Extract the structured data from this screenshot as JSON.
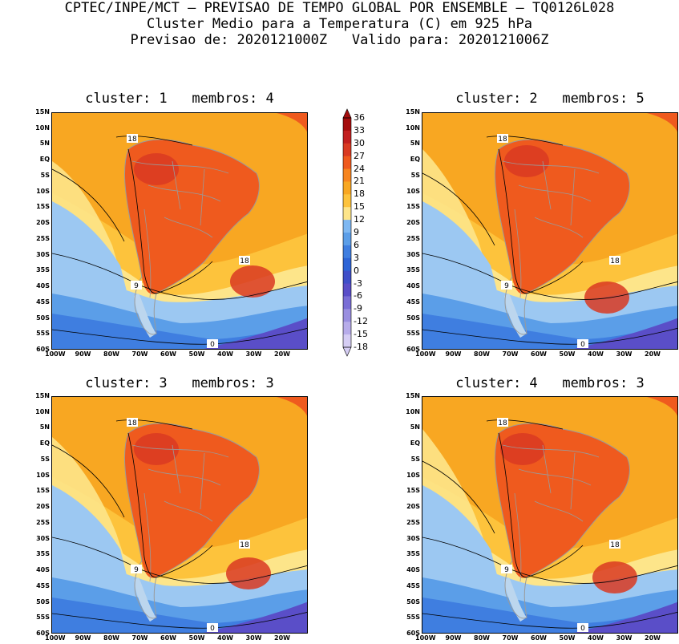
{
  "header": {
    "line1": "CPTEC/INPE/MCT – PREVISAO DE TEMPO GLOBAL POR ENSEMBLE – TQ0126L028",
    "line2": "Cluster Medio para a Temperatura (C) em 925 hPa",
    "line3": "Previsao de: 2020121000Z   Valido para: 2020121006Z"
  },
  "panels": [
    {
      "title": "cluster: 1   membros: 4"
    },
    {
      "title": "cluster: 2   membros: 5"
    },
    {
      "title": "cluster: 3   membros: 3"
    },
    {
      "title": "cluster: 4   membros: 3"
    }
  ],
  "lat_labels": [
    "15N",
    "10N",
    "5N",
    "EQ",
    "5S",
    "10S",
    "15S",
    "20S",
    "25S",
    "30S",
    "35S",
    "40S",
    "45S",
    "50S",
    "55S",
    "60S"
  ],
  "lon_labels": [
    "100W",
    "90W",
    "80W",
    "70W",
    "60W",
    "50W",
    "40W",
    "30W",
    "20W"
  ],
  "contour_labels": [
    "18",
    "18",
    "9",
    "0"
  ],
  "colorbar": {
    "levels": [
      "36",
      "33",
      "30",
      "27",
      "24",
      "21",
      "18",
      "15",
      "12",
      "9",
      "6",
      "3",
      "0",
      "-3",
      "-6",
      "-9",
      "-12",
      "-15",
      "-18"
    ],
    "colors": [
      "#a50d0d",
      "#c21f1f",
      "#d93a22",
      "#ef5a1e",
      "#f7851f",
      "#f8a722",
      "#fdc33c",
      "#fde58a",
      "#7fb8f2",
      "#5b9ee8",
      "#3f7ee0",
      "#2d64d6",
      "#3f4fc9",
      "#5a4ec8",
      "#7a6ed6",
      "#9a8fe0",
      "#b7acea",
      "#d5cdf4"
    ]
  },
  "map_colors": {
    "ocean_warm": "#f8a722",
    "ocean_mid": "#fdc33c",
    "ocean_cool": "#fde58a",
    "ocean_cold": "#9cc8f2",
    "ocean_colder": "#5b9ee8",
    "ocean_coldest": "#3f7ee0",
    "polar": "#5a4ec8",
    "land_hot": "#ef5a1e",
    "land_hotter": "#d93a22",
    "border": "#9a9a9a"
  }
}
